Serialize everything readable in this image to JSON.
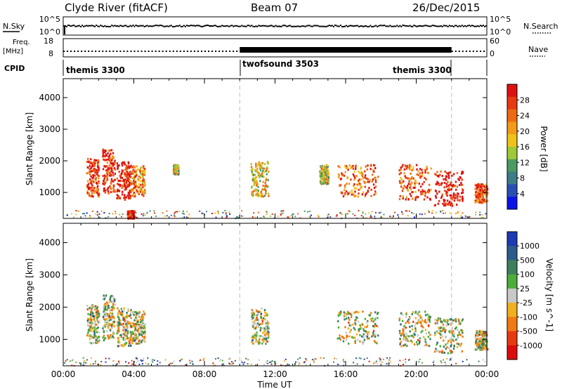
{
  "header": {
    "radar": "Clyde River (fitACF)",
    "beam": "Beam 07",
    "date": "26/Dec/2015"
  },
  "top_panels": {
    "nsky_label": "N.Sky",
    "nsearch_label": "N.Search",
    "nsky_ticks": [
      "10^5",
      "10^0"
    ],
    "nsearch_ticks": [
      "10^5",
      "10^0"
    ],
    "freq_label": "Freq.",
    "freq_unit": "[MHz]",
    "freq_ticks": [
      "18",
      "8"
    ],
    "nave_label": "Nave",
    "nave_ticks": [
      "60",
      "0"
    ],
    "cpid_label": "CPID",
    "cpid_segments": [
      {
        "label": "themis 3300",
        "start_h": 0,
        "end_h": 10
      },
      {
        "label": "twofsound 3503",
        "start_h": 10,
        "end_h": 22
      },
      {
        "label": "themis 3300",
        "start_h": 22,
        "end_h": 24
      }
    ]
  },
  "axes": {
    "xlabel": "Time UT",
    "ylabel": "Slant Range [km]",
    "xticks": [
      "00:00",
      "04:00",
      "08:00",
      "12:00",
      "16:00",
      "20:00",
      "00:00"
    ],
    "yticks": [
      "1000",
      "2000",
      "3000",
      "4000"
    ]
  },
  "colorbars": {
    "power": {
      "label": "Power [dB]",
      "ticks": [
        "4",
        "8",
        "12",
        "16",
        "20",
        "24",
        "28"
      ],
      "colors": [
        "#0a14e6",
        "#2a4fb4",
        "#3d7d86",
        "#4a9a62",
        "#9fc93a",
        "#f1c21a",
        "#f39a18",
        "#ee6a12",
        "#e73a10",
        "#dd1010"
      ]
    },
    "velocity": {
      "label": "Velocity [m s^-1]",
      "ticks": [
        "1000",
        "500",
        "100",
        "25",
        "-25",
        "-100",
        "-500",
        "-1000"
      ],
      "colors": [
        "#1e3ab4",
        "#2b5c8a",
        "#3f7f5e",
        "#4cad3a",
        "#c8c8c8",
        "#f0b020",
        "#f07a14",
        "#e83a10",
        "#dd0c0c"
      ]
    }
  },
  "chart_data": [
    {
      "type": "heatmap",
      "name": "Power",
      "x_range_h": [
        0,
        24
      ],
      "ylim_km": [
        180,
        4600
      ],
      "regions": [
        {
          "t": [
            1.3,
            2.0
          ],
          "r": [
            900,
            2100
          ],
          "level": 0.85
        },
        {
          "t": [
            2.2,
            2.9
          ],
          "r": [
            1000,
            2400
          ],
          "level": 0.9
        },
        {
          "t": [
            3.0,
            3.8
          ],
          "r": [
            800,
            2000
          ],
          "level": 0.95
        },
        {
          "t": [
            3.8,
            4.6
          ],
          "r": [
            900,
            1900
          ],
          "level": 0.7
        },
        {
          "t": [
            3.6,
            4.0
          ],
          "r": [
            200,
            450
          ],
          "level": 0.95
        },
        {
          "t": [
            6.2,
            6.5
          ],
          "r": [
            1600,
            1900
          ],
          "level": 0.5
        },
        {
          "t": [
            10.6,
            11.6
          ],
          "r": [
            900,
            2000
          ],
          "level": 0.55
        },
        {
          "t": [
            14.5,
            15.0
          ],
          "r": [
            1300,
            1900
          ],
          "level": 0.5
        },
        {
          "t": [
            15.5,
            17.8
          ],
          "r": [
            900,
            1900
          ],
          "level": 0.75
        },
        {
          "t": [
            19.0,
            20.8
          ],
          "r": [
            800,
            1900
          ],
          "level": 0.8
        },
        {
          "t": [
            21.0,
            22.6
          ],
          "r": [
            600,
            1700
          ],
          "level": 0.95
        },
        {
          "t": [
            23.3,
            24.0
          ],
          "r": [
            700,
            1300
          ],
          "level": 0.8
        }
      ]
    },
    {
      "type": "heatmap",
      "name": "Velocity",
      "x_range_h": [
        0,
        24
      ],
      "ylim_km": [
        180,
        4600
      ],
      "regions": [
        {
          "t": [
            1.3,
            2.0
          ],
          "r": [
            900,
            2100
          ],
          "level": 0.6
        },
        {
          "t": [
            2.2,
            2.9
          ],
          "r": [
            1000,
            2400
          ],
          "level": 0.65
        },
        {
          "t": [
            3.0,
            3.8
          ],
          "r": [
            800,
            2000
          ],
          "level": 0.6
        },
        {
          "t": [
            3.8,
            4.6
          ],
          "r": [
            900,
            1900
          ],
          "level": 0.55
        },
        {
          "t": [
            10.6,
            11.6
          ],
          "r": [
            900,
            2000
          ],
          "level": 0.6
        },
        {
          "t": [
            15.5,
            17.8
          ],
          "r": [
            900,
            1900
          ],
          "level": 0.45
        },
        {
          "t": [
            19.0,
            20.8
          ],
          "r": [
            800,
            1900
          ],
          "level": 0.65
        },
        {
          "t": [
            21.0,
            22.6
          ],
          "r": [
            600,
            1700
          ],
          "level": 0.7
        },
        {
          "t": [
            23.3,
            24.0
          ],
          "r": [
            700,
            1300
          ],
          "level": 0.55
        }
      ]
    }
  ]
}
